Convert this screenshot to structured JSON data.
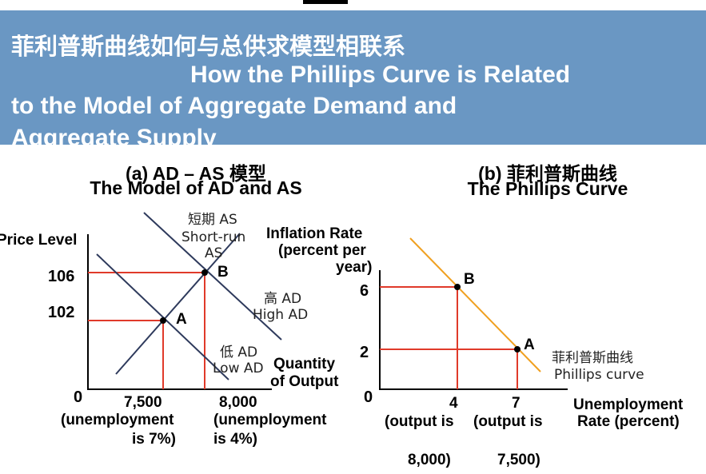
{
  "header": {
    "title_cn": "菲利普斯曲线如何与总供求模型相联系",
    "title_en_line1": "How the Phillips Curve is Related",
    "title_en_line2": "to the Model of Aggregate Demand and",
    "title_en_line3": "Aggregate Supply"
  },
  "panel_a": {
    "title_line1": "(a) AD – AS 模型",
    "title_line2": "The Model of AD and AS",
    "y_label": "Price Level",
    "x_label_line1": "Quantity",
    "x_label_line2": "of Output",
    "origin": "0",
    "y_ticks": [
      "106",
      "102"
    ],
    "x_tick1_line1": "7,500",
    "x_tick1_line2": "(unemployment",
    "x_tick1_line3": "is 7%)",
    "x_tick2_line1": "8,000",
    "x_tick2_line2": "(unemployment",
    "x_tick2_line3": "is 4%)",
    "sras_label_cn": "短期 AS",
    "sras_label_en1": "Short-run",
    "sras_label_en2": "AS",
    "high_ad_cn": "高 AD",
    "high_ad_en": "High AD",
    "low_ad_cn": "低 AD",
    "low_ad_en": "Low AD",
    "point_a": "A",
    "point_b": "B"
  },
  "panel_b": {
    "title_line1": "(b) 菲利普斯曲线",
    "title_line2": "The Phillips Curve",
    "y_label_line1": "Inflation Rate",
    "y_label_line2": "(percent per",
    "y_label_line3": "year)",
    "x_label_line1": "Unemployment",
    "x_label_line2": "Rate (percent)",
    "origin": "0",
    "y_ticks": [
      "6",
      "2"
    ],
    "x_tick1": "4",
    "x_tick2": "7",
    "x_note1_line1": "(output is",
    "x_note1_line2": "8,000)",
    "x_note2_line1": "(output is",
    "x_note2_line2": "7,500)",
    "curve_label_cn": "菲利普斯曲线",
    "curve_label_en": "Phillips curve",
    "point_a": "A",
    "point_b": "B"
  },
  "colors": {
    "header_bg": "#6a97c3",
    "guide_red": "#e03a2a",
    "curve_navy": "#2e3a5c",
    "phillips_orange": "#f0a020"
  }
}
